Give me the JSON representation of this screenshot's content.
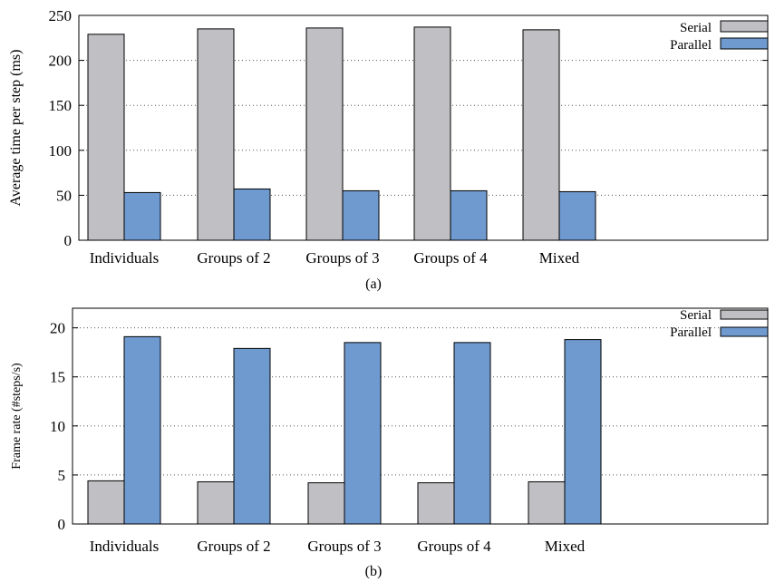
{
  "chart_data": [
    {
      "type": "bar",
      "caption": "(a)",
      "ylabel": "Average time per step (ms)",
      "xlabel": "",
      "ylim": [
        0,
        250
      ],
      "yticks": [
        0,
        50,
        100,
        150,
        200,
        250
      ],
      "grid": "horizontal-dotted",
      "legend": "top-right",
      "categories": [
        "Individuals",
        "Groups of 2",
        "Groups of 3",
        "Groups of 4",
        "Mixed"
      ],
      "series": [
        {
          "name": "Serial",
          "color": "#c0bfc3",
          "values": [
            229,
            235,
            236,
            237,
            234
          ]
        },
        {
          "name": "Parallel",
          "color": "#6f9ad0",
          "values": [
            53,
            57,
            55,
            55,
            54
          ]
        }
      ]
    },
    {
      "type": "bar",
      "caption": "(b)",
      "ylabel": "Frame rate (#steps/s)",
      "xlabel": "",
      "ylim": [
        0,
        22
      ],
      "yticks": [
        0,
        5,
        10,
        15,
        20
      ],
      "grid": "horizontal-dotted",
      "legend": "top-right",
      "categories": [
        "Individuals",
        "Groups of 2",
        "Groups of 3",
        "Groups of 4",
        "Mixed"
      ],
      "series": [
        {
          "name": "Serial",
          "color": "#c0bfc3",
          "values": [
            4.4,
            4.3,
            4.2,
            4.2,
            4.3
          ]
        },
        {
          "name": "Parallel",
          "color": "#6f9ad0",
          "values": [
            19.1,
            17.9,
            18.5,
            18.5,
            18.8
          ]
        }
      ]
    }
  ]
}
